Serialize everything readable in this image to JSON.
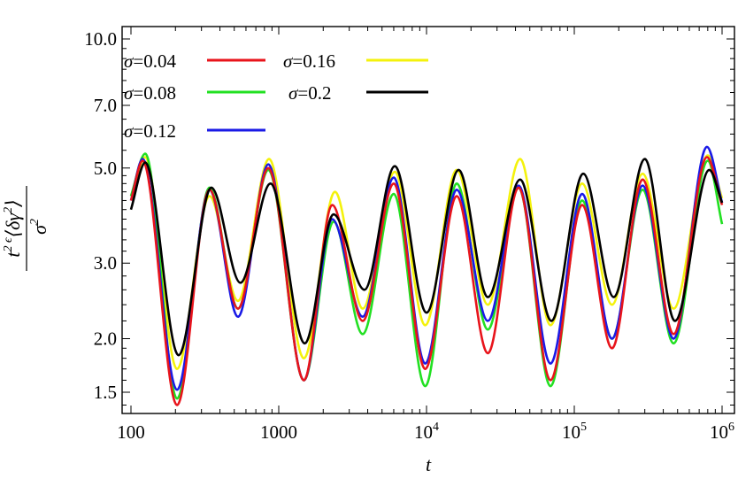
{
  "chart_data": {
    "type": "line",
    "title": "",
    "xlabel": "t",
    "ylabel_parts": {
      "base": "t",
      "exponent": "2 ϵ",
      "numerator_body": "⟨δγ",
      "numerator_sup": "2",
      "numerator_close": "⟩",
      "denominator_base": "σ",
      "denominator_sup": "2"
    },
    "x_scale": "log",
    "y_scale": "log",
    "xlim": [
      100,
      1000000
    ],
    "ylim": [
      1.3,
      10.0
    ],
    "x_ticks": [
      {
        "value": 100,
        "label": "100",
        "sup": ""
      },
      {
        "value": 1000,
        "label": "1000",
        "sup": ""
      },
      {
        "value": 10000,
        "label": "10",
        "sup": "4"
      },
      {
        "value": 100000,
        "label": "10",
        "sup": "5"
      },
      {
        "value": 1000000,
        "label": "10",
        "sup": "6"
      }
    ],
    "y_ticks": [
      {
        "value": 1.5,
        "label": "1.5"
      },
      {
        "value": 2.0,
        "label": "2.0"
      },
      {
        "value": 3.0,
        "label": "3.0"
      },
      {
        "value": 5.0,
        "label": "5.0"
      },
      {
        "value": 7.0,
        "label": "7.0"
      },
      {
        "value": 10.0,
        "label": "10.0"
      }
    ],
    "grid": false,
    "legend_position": "top-left",
    "series": [
      {
        "name": "σ=0.04",
        "color": "#e8141b",
        "x": [
          100,
          120,
          205,
          340,
          530,
          850,
          1480,
          2300,
          3700,
          6000,
          9800,
          16000,
          26000,
          42000,
          69000,
          113000,
          180000,
          290000,
          470000,
          790000,
          1000000
        ],
        "y": [
          4.2,
          5.2,
          1.4,
          4.45,
          2.35,
          5.0,
          1.6,
          4.1,
          2.2,
          4.6,
          1.7,
          4.3,
          1.85,
          4.5,
          1.6,
          4.1,
          1.9,
          4.7,
          2.05,
          5.3,
          4.1
        ]
      },
      {
        "name": "σ=0.08",
        "color": "#22e022",
        "x": [
          100,
          125,
          205,
          340,
          530,
          850,
          1480,
          2350,
          3700,
          6000,
          9800,
          16000,
          26000,
          42000,
          69000,
          113000,
          180000,
          290000,
          470000,
          800000,
          1000000
        ],
        "y": [
          4.3,
          5.4,
          1.45,
          4.5,
          2.35,
          4.95,
          1.6,
          3.75,
          2.05,
          4.35,
          1.55,
          4.6,
          2.1,
          4.5,
          1.55,
          4.2,
          2.0,
          4.45,
          1.95,
          5.2,
          3.7
        ]
      },
      {
        "name": "σ=0.12",
        "color": "#1a1ae6",
        "x": [
          100,
          120,
          205,
          340,
          530,
          850,
          1480,
          2300,
          3700,
          6000,
          9800,
          16000,
          26000,
          42000,
          69000,
          113000,
          180000,
          290000,
          470000,
          790000,
          1000000
        ],
        "y": [
          4.2,
          5.25,
          1.52,
          4.45,
          2.25,
          5.1,
          1.6,
          3.8,
          2.25,
          4.75,
          1.75,
          4.45,
          2.2,
          4.55,
          1.75,
          4.35,
          2.0,
          4.55,
          2.0,
          5.6,
          4.15
        ]
      },
      {
        "name": "σ=0.16",
        "color": "#f4f20c",
        "x": [
          100,
          125,
          205,
          340,
          530,
          860,
          1480,
          2400,
          3700,
          6100,
          9800,
          16000,
          26000,
          43000,
          69000,
          113000,
          180000,
          290000,
          470000,
          800000,
          1000000
        ],
        "y": [
          4.3,
          5.3,
          1.7,
          4.3,
          2.45,
          5.25,
          1.8,
          4.4,
          2.35,
          4.9,
          2.15,
          4.95,
          2.4,
          5.25,
          2.15,
          4.6,
          2.4,
          4.85,
          2.35,
          5.35,
          4.25
        ]
      },
      {
        "name": "σ=0.2",
        "color": "#000000",
        "x": [
          100,
          125,
          210,
          350,
          550,
          880,
          1500,
          2350,
          3800,
          6100,
          10000,
          16500,
          26000,
          43000,
          70000,
          115000,
          185000,
          300000,
          480000,
          820000,
          1000000
        ],
        "y": [
          4.0,
          5.15,
          1.83,
          4.5,
          2.7,
          4.6,
          1.95,
          3.9,
          2.6,
          5.05,
          2.3,
          4.95,
          2.5,
          4.7,
          2.2,
          4.85,
          2.5,
          5.25,
          2.2,
          4.95,
          4.15
        ]
      }
    ]
  }
}
